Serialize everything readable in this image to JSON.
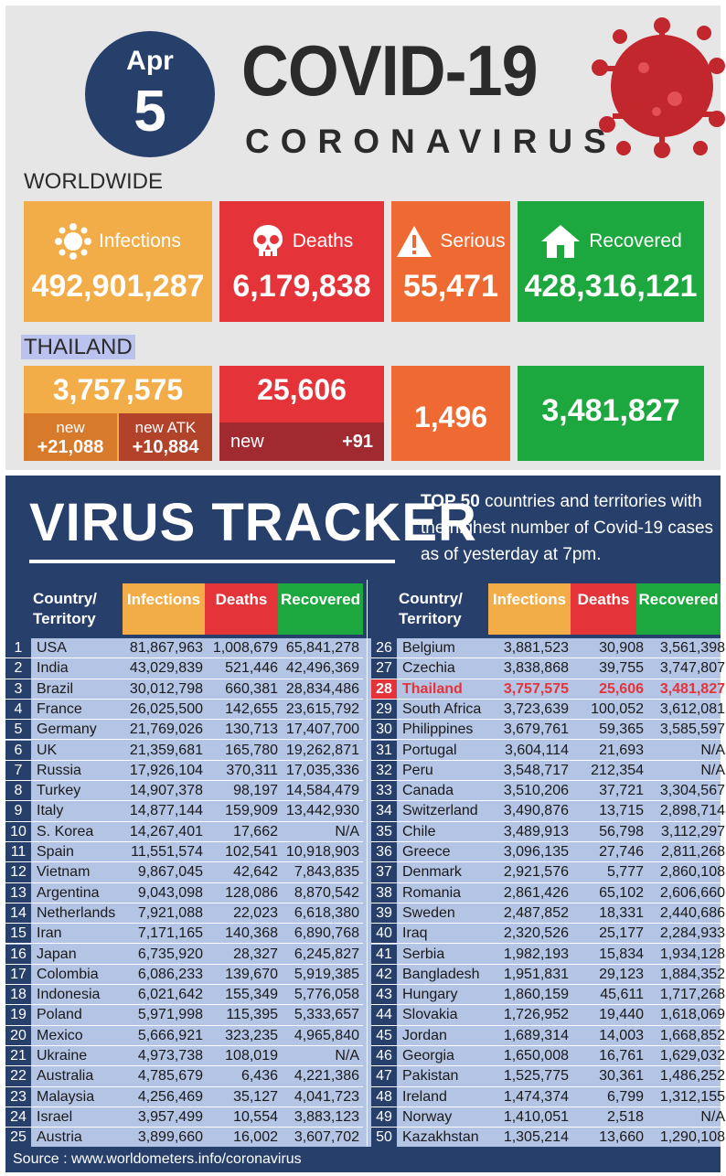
{
  "header": {
    "date_month": "Apr",
    "date_day": "5",
    "title": "COVID-19",
    "subtitle": "CORONAVIRUS"
  },
  "worldwide": {
    "label": "WORLDWIDE",
    "infections": {
      "label": "Infections",
      "value": "492,901,287",
      "icon": "virus-icon"
    },
    "deaths": {
      "label": "Deaths",
      "value": "6,179,838",
      "icon": "skull-icon"
    },
    "serious": {
      "label": "Serious",
      "value": "55,471",
      "icon": "warning-icon"
    },
    "recovered": {
      "label": "Recovered",
      "value": "428,316,121",
      "icon": "house-icon"
    }
  },
  "thailand": {
    "label": "THAILAND",
    "infections": "3,757,575",
    "new_label": "new",
    "new_value": "+21,088",
    "atk_label": "new ATK",
    "atk_value": "+10,884",
    "deaths": "25,606",
    "deaths_new_label": "new",
    "deaths_new_value": "+91",
    "serious": "1,496",
    "recovered": "3,481,827"
  },
  "tracker": {
    "title": "VIRUS TRACKER",
    "desc_bold": "TOP 50",
    "desc_rest": " countries and territories with the highest number of Covid-19 cases as of yesterday at 7pm."
  },
  "table": {
    "headers": {
      "country": "Country/ Territory",
      "infections": "Infections",
      "deaths": "Deaths",
      "recovered": "Recovered"
    },
    "rows": [
      [
        "1",
        "USA",
        "81,867,963",
        "1,008,679",
        "65,841,278"
      ],
      [
        "2",
        "India",
        "43,029,839",
        "521,446",
        "42,496,369"
      ],
      [
        "3",
        "Brazil",
        "30,012,798",
        "660,381",
        "28,834,486"
      ],
      [
        "4",
        "France",
        "26,025,500",
        "142,655",
        "23,615,792"
      ],
      [
        "5",
        "Germany",
        "21,769,026",
        "130,713",
        "17,407,700"
      ],
      [
        "6",
        "UK",
        "21,359,681",
        "165,780",
        "19,262,871"
      ],
      [
        "7",
        "Russia",
        "17,926,104",
        "370,311",
        "17,035,336"
      ],
      [
        "8",
        "Turkey",
        "14,907,378",
        "98,197",
        "14,584,479"
      ],
      [
        "9",
        "Italy",
        "14,877,144",
        "159,909",
        "13,442,930"
      ],
      [
        "10",
        "S. Korea",
        "14,267,401",
        "17,662",
        "N/A"
      ],
      [
        "11",
        "Spain",
        "11,551,574",
        "102,541",
        "10,918,903"
      ],
      [
        "12",
        "Vietnam",
        "9,867,045",
        "42,642",
        "7,843,835"
      ],
      [
        "13",
        "Argentina",
        "9,043,098",
        "128,086",
        "8,870,542"
      ],
      [
        "14",
        "Netherlands",
        "7,921,088",
        "22,023",
        "6,618,380"
      ],
      [
        "15",
        "Iran",
        "7,171,165",
        "140,368",
        "6,890,768"
      ],
      [
        "16",
        "Japan",
        "6,735,920",
        "28,327",
        "6,245,827"
      ],
      [
        "17",
        "Colombia",
        "6,086,233",
        "139,670",
        "5,919,385"
      ],
      [
        "18",
        "Indonesia",
        "6,021,642",
        "155,349",
        "5,776,058"
      ],
      [
        "19",
        "Poland",
        "5,971,998",
        "115,395",
        "5,333,657"
      ],
      [
        "20",
        "Mexico",
        "5,666,921",
        "323,235",
        "4,965,840"
      ],
      [
        "21",
        "Ukraine",
        "4,973,738",
        "108,019",
        "N/A"
      ],
      [
        "22",
        "Australia",
        "4,785,679",
        "6,436",
        "4,221,386"
      ],
      [
        "23",
        "Malaysia",
        "4,256,469",
        "35,127",
        "4,041,723"
      ],
      [
        "24",
        "Israel",
        "3,957,499",
        "10,554",
        "3,883,123"
      ],
      [
        "25",
        "Austria",
        "3,899,660",
        "16,002",
        "3,607,702"
      ],
      [
        "26",
        "Belgium",
        "3,881,523",
        "30,908",
        "3,561,398"
      ],
      [
        "27",
        "Czechia",
        "3,838,868",
        "39,755",
        "3,747,807"
      ],
      [
        "28",
        "Thailand",
        "3,757,575",
        "25,606",
        "3,481,827"
      ],
      [
        "29",
        "South Africa",
        "3,723,639",
        "100,052",
        "3,612,081"
      ],
      [
        "30",
        "Philippines",
        "3,679,761",
        "59,365",
        "3,585,597"
      ],
      [
        "31",
        "Portugal",
        "3,604,114",
        "21,693",
        "N/A"
      ],
      [
        "32",
        "Peru",
        "3,548,717",
        "212,354",
        "N/A"
      ],
      [
        "33",
        "Canada",
        "3,510,206",
        "37,721",
        "3,304,567"
      ],
      [
        "34",
        "Switzerland",
        "3,490,876",
        "13,715",
        "2,898,714"
      ],
      [
        "35",
        "Chile",
        "3,489,913",
        "56,798",
        "3,112,297"
      ],
      [
        "36",
        "Greece",
        "3,096,135",
        "27,746",
        "2,811,268"
      ],
      [
        "37",
        "Denmark",
        "2,921,576",
        "5,777",
        "2,860,108"
      ],
      [
        "38",
        "Romania",
        "2,861,426",
        "65,102",
        "2,606,660"
      ],
      [
        "39",
        "Sweden",
        "2,487,852",
        "18,331",
        "2,440,686"
      ],
      [
        "40",
        "Iraq",
        "2,320,526",
        "25,177",
        "2,284,933"
      ],
      [
        "41",
        "Serbia",
        "1,982,193",
        "15,834",
        "1,934,128"
      ],
      [
        "42",
        "Bangladesh",
        "1,951,831",
        "29,123",
        "1,884,352"
      ],
      [
        "43",
        "Hungary",
        "1,860,159",
        "45,611",
        "1,717,268"
      ],
      [
        "44",
        "Slovakia",
        "1,726,952",
        "19,440",
        "1,618,069"
      ],
      [
        "45",
        "Jordan",
        "1,689,314",
        "14,003",
        "1,668,852"
      ],
      [
        "46",
        "Georgia",
        "1,650,008",
        "16,761",
        "1,629,032"
      ],
      [
        "47",
        "Pakistan",
        "1,525,775",
        "30,361",
        "1,486,252"
      ],
      [
        "48",
        "Ireland",
        "1,474,374",
        "6,799",
        "1,312,155"
      ],
      [
        "49",
        "Norway",
        "1,410,051",
        "2,518",
        "N/A"
      ],
      [
        "50",
        "Kazakhstan",
        "1,305,214",
        "13,660",
        "1,290,108"
      ]
    ],
    "highlight_rank": "28"
  },
  "source": "Source : www.worldometers.info/coronavirus",
  "colors": {
    "navy": "#273f6b",
    "orange": "#f2ad48",
    "red": "#e5333a",
    "dark_orange": "#ee6a32",
    "green": "#1ca83e"
  }
}
